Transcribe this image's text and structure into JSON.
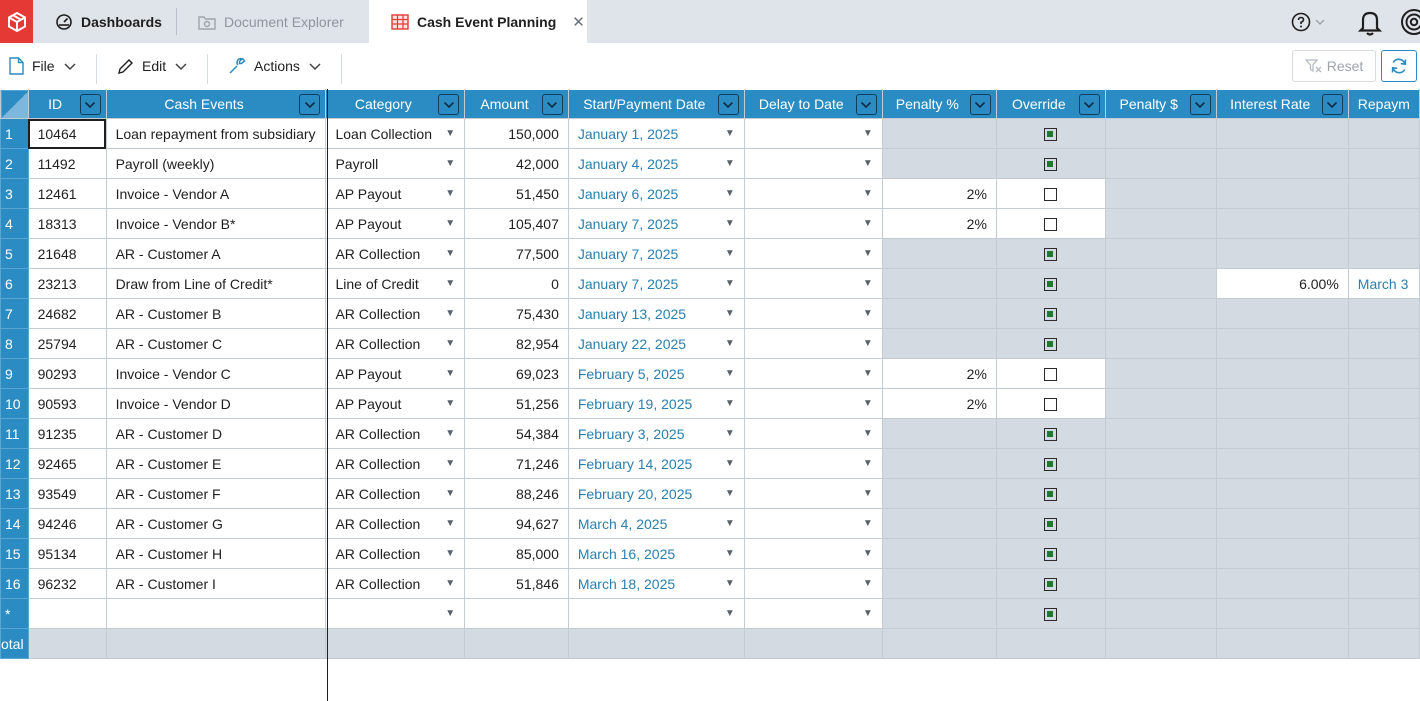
{
  "tabs": [
    {
      "label": "Dashboards"
    },
    {
      "label": "Document Explorer"
    },
    {
      "label": "Cash Event Planning"
    }
  ],
  "toolbar": {
    "file": "File",
    "edit": "Edit",
    "actions": "Actions",
    "reset": "Reset"
  },
  "colors": {
    "accent": "#2b8cc4",
    "brand": "#e53935",
    "gray_cell": "#d3dae1",
    "link": "#2a7fb0"
  },
  "grid": {
    "columns": [
      {
        "label": "ID"
      },
      {
        "label": "Cash Events"
      },
      {
        "label": "Category"
      },
      {
        "label": "Amount"
      },
      {
        "label": "Start/Payment Date"
      },
      {
        "label": "Delay to Date"
      },
      {
        "label": "Penalty %"
      },
      {
        "label": "Override"
      },
      {
        "label": "Penalty $"
      },
      {
        "label": "Interest Rate"
      },
      {
        "label": "Repaym"
      }
    ],
    "rows": [
      {
        "n": "1",
        "id": "10464",
        "event": "Loan repayment from subsidiary",
        "category": "Loan Collection",
        "amount": "150,000",
        "date": "January 1, 2025",
        "penalty_pct": "",
        "override": true,
        "interest": "",
        "repay": ""
      },
      {
        "n": "2",
        "id": "11492",
        "event": "Payroll (weekly)",
        "category": "Payroll",
        "amount": "42,000",
        "date": "January 4, 2025",
        "penalty_pct": "",
        "override": true,
        "interest": "",
        "repay": ""
      },
      {
        "n": "3",
        "id": "12461",
        "event": "Invoice - Vendor A",
        "category": "AP Payout",
        "amount": "51,450",
        "date": "January 6, 2025",
        "penalty_pct": "2%",
        "override": false,
        "interest": "",
        "repay": ""
      },
      {
        "n": "4",
        "id": "18313",
        "event": "Invoice - Vendor B*",
        "category": "AP Payout",
        "amount": "105,407",
        "date": "January 7, 2025",
        "penalty_pct": "2%",
        "override": false,
        "interest": "",
        "repay": ""
      },
      {
        "n": "5",
        "id": "21648",
        "event": "AR - Customer A",
        "category": "AR Collection",
        "amount": "77,500",
        "date": "January 7, 2025",
        "penalty_pct": "",
        "override": true,
        "interest": "",
        "repay": ""
      },
      {
        "n": "6",
        "id": "23213",
        "event": "Draw from Line of Credit*",
        "category": "Line of Credit",
        "amount": "0",
        "date": "January 7, 2025",
        "penalty_pct": "",
        "override": true,
        "interest": "6.00%",
        "repay": "March 3"
      },
      {
        "n": "7",
        "id": "24682",
        "event": "AR - Customer B",
        "category": "AR Collection",
        "amount": "75,430",
        "date": "January 13, 2025",
        "penalty_pct": "",
        "override": true,
        "interest": "",
        "repay": ""
      },
      {
        "n": "8",
        "id": "25794",
        "event": "AR - Customer C",
        "category": "AR Collection",
        "amount": "82,954",
        "date": "January 22, 2025",
        "penalty_pct": "",
        "override": true,
        "interest": "",
        "repay": ""
      },
      {
        "n": "9",
        "id": "90293",
        "event": "Invoice - Vendor C",
        "category": "AP Payout",
        "amount": "69,023",
        "date": "February 5, 2025",
        "penalty_pct": "2%",
        "override": false,
        "interest": "",
        "repay": ""
      },
      {
        "n": "10",
        "id": "90593",
        "event": "Invoice - Vendor D",
        "category": "AP Payout",
        "amount": "51,256",
        "date": "February 19, 2025",
        "penalty_pct": "2%",
        "override": false,
        "interest": "",
        "repay": ""
      },
      {
        "n": "11",
        "id": "91235",
        "event": "AR - Customer D",
        "category": "AR Collection",
        "amount": "54,384",
        "date": "February 3, 2025",
        "penalty_pct": "",
        "override": true,
        "interest": "",
        "repay": ""
      },
      {
        "n": "12",
        "id": "92465",
        "event": "AR - Customer E",
        "category": "AR Collection",
        "amount": "71,246",
        "date": "February 14, 2025",
        "penalty_pct": "",
        "override": true,
        "interest": "",
        "repay": ""
      },
      {
        "n": "13",
        "id": "93549",
        "event": "AR - Customer F",
        "category": "AR Collection",
        "amount": "88,246",
        "date": "February 20, 2025",
        "penalty_pct": "",
        "override": true,
        "interest": "",
        "repay": ""
      },
      {
        "n": "14",
        "id": "94246",
        "event": "AR - Customer G",
        "category": "AR Collection",
        "amount": "94,627",
        "date": "March 4, 2025",
        "penalty_pct": "",
        "override": true,
        "interest": "",
        "repay": ""
      },
      {
        "n": "15",
        "id": "95134",
        "event": "AR - Customer H",
        "category": "AR Collection",
        "amount": "85,000",
        "date": "March 16, 2025",
        "penalty_pct": "",
        "override": true,
        "interest": "",
        "repay": ""
      },
      {
        "n": "16",
        "id": "96232",
        "event": "AR - Customer I",
        "category": "AR Collection",
        "amount": "51,846",
        "date": "March 18, 2025",
        "penalty_pct": "",
        "override": true,
        "interest": "",
        "repay": ""
      }
    ],
    "new_row_marker": "*",
    "total_label": "otal"
  }
}
